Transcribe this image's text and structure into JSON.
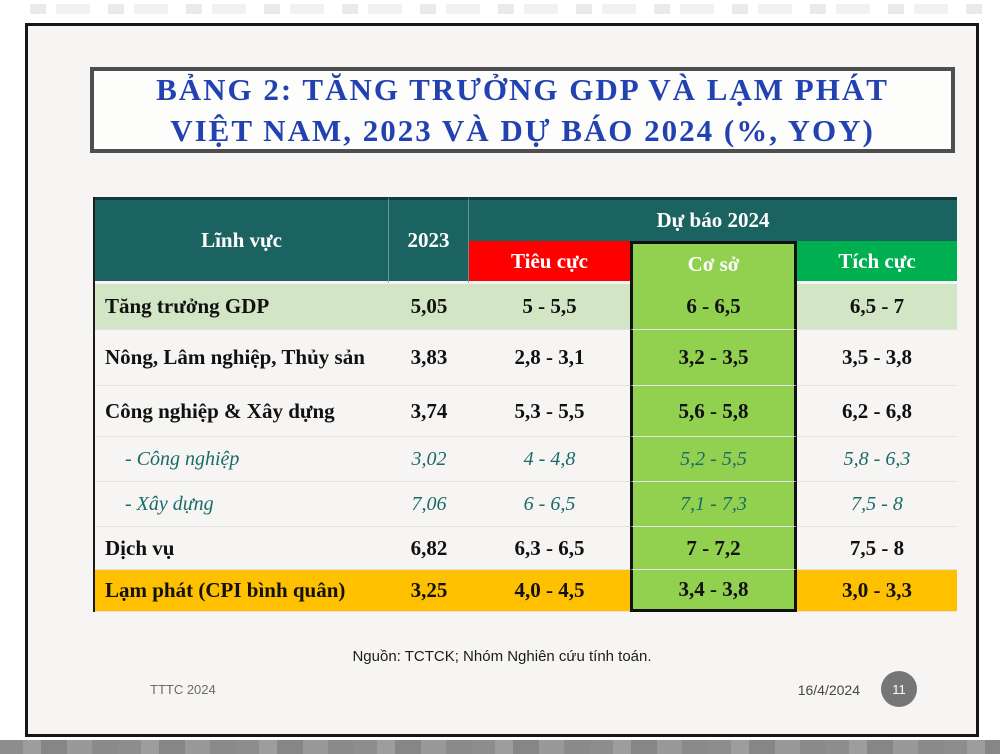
{
  "slide": {
    "title_line1": "BẢNG 2: TĂNG TRƯỞNG GDP VÀ LẠM PHÁT",
    "title_line2": "VIỆT NAM, 2023 VÀ DỰ BÁO 2024 (%, YOY)",
    "footer": {
      "source": "Nguồn: TCTCK; Nhóm Nghiên cứu tính toán.",
      "left_label": "TTTC 2024",
      "date": "16/4/2024",
      "page_number": "11"
    }
  },
  "table": {
    "headers": {
      "linh_vuc": "Lĩnh vực",
      "y2023": "2023",
      "du_bao": "Dự báo 2024",
      "tieu_cuc": "Tiêu cực",
      "co_so": "Cơ sở",
      "tich_cuc": "Tích cực"
    },
    "rows": [
      {
        "label": "Tăng trưởng GDP",
        "y2023": "5,05",
        "tieu_cuc": "5 - 5,5",
        "co_so": "6 - 6,5",
        "tich_cuc": "6,5 - 7"
      },
      {
        "label": "Nông, Lâm nghiệp, Thủy sản",
        "y2023": "3,83",
        "tieu_cuc": "2,8 - 3,1",
        "co_so": "3,2 - 3,5",
        "tich_cuc": "3,5 - 3,8"
      },
      {
        "label": "Công nghiệp & Xây dựng",
        "y2023": "3,74",
        "tieu_cuc": "5,3 - 5,5",
        "co_so": "5,6 - 5,8",
        "tich_cuc": "6,2 - 6,8"
      },
      {
        "label": "- Công nghiệp",
        "y2023": "3,02",
        "tieu_cuc": "4 - 4,8",
        "co_so": "5,2 - 5,5",
        "tich_cuc": "5,8 - 6,3"
      },
      {
        "label": "- Xây dựng",
        "y2023": "7,06",
        "tieu_cuc": "6 - 6,5",
        "co_so": "7,1 - 7,3",
        "tich_cuc": "7,5 - 8"
      },
      {
        "label": "Dịch vụ",
        "y2023": "6,82",
        "tieu_cuc": "6,3 - 6,5",
        "co_so": "7 - 7,2",
        "tich_cuc": "7,5 - 8"
      },
      {
        "label": "Lạm phát (CPI bình quân)",
        "y2023": "3,25",
        "tieu_cuc": "4,0 - 4,5",
        "co_so": "3,4 - 3,8",
        "tich_cuc": "3,0 - 3,3"
      }
    ]
  },
  "colors": {
    "header_teal": "#1B6361",
    "negative_red": "#FF0000",
    "base_green": "#92D050",
    "positive_green": "#00B050",
    "highlight_light_green": "#D2E5C4",
    "inflation_orange": "#FFC000",
    "title_blue": "#2342B2",
    "sub_row_teal": "#1A6B68"
  }
}
